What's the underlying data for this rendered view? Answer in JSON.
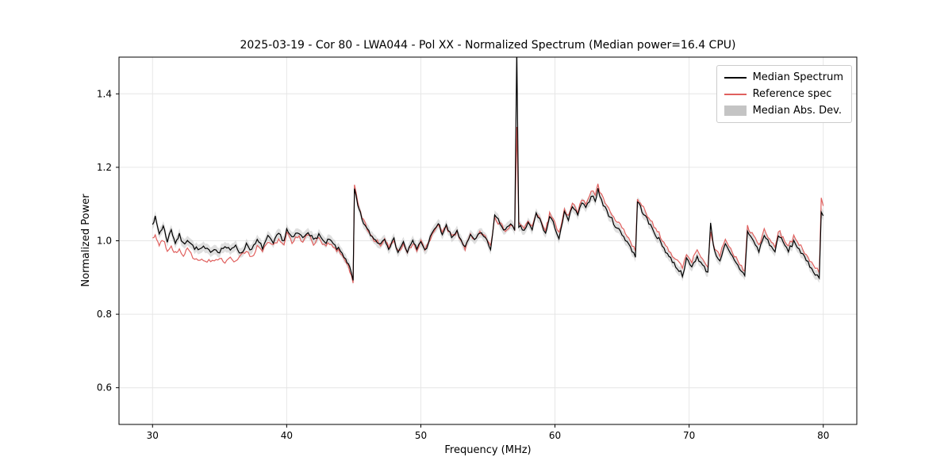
{
  "chart_data": {
    "type": "line",
    "title": "2025-03-19 - Cor 80 - LWA044 - Pol XX - Normalized Spectrum (Median power=16.4 CPU)",
    "xlabel": "Frequency (MHz)",
    "ylabel": "Normalized Power",
    "xlim": [
      27.5,
      82.5
    ],
    "ylim": [
      0.5,
      1.5
    ],
    "xticks": [
      30,
      40,
      50,
      60,
      70,
      80
    ],
    "yticks": [
      0.6,
      0.8,
      1.0,
      1.2,
      1.4
    ],
    "grid": true,
    "layout": {
      "background": "#ffffff",
      "grid_color": "#e6e6e6",
      "axis_color": "#000000",
      "median_color": "#000000",
      "reference_color": "#e0605e",
      "band_color": "#b8b8b8",
      "band_opacity": 0.45,
      "line_width": 1.2
    },
    "legend": {
      "position": "upper right",
      "entries": [
        {
          "label": "Median Spectrum",
          "color": "#000000",
          "type": "line"
        },
        {
          "label": "Reference spec",
          "color": "#e0605e",
          "type": "line"
        },
        {
          "label": "Median Abs. Dev.",
          "color": "#c4c4c4",
          "type": "band"
        }
      ]
    },
    "mad_halfwidth": 0.013,
    "noise": {
      "seed": 7,
      "amplitude": 0.006,
      "step_mhz": 0.12
    },
    "columns": [
      "freq_mhz",
      "median",
      "reference"
    ],
    "points": [
      [
        30.0,
        1.05,
        1.005
      ],
      [
        30.2,
        1.062,
        1.015
      ],
      [
        30.5,
        1.02,
        0.99
      ],
      [
        30.8,
        1.04,
        1.0
      ],
      [
        31.1,
        1.0,
        0.975
      ],
      [
        31.4,
        1.03,
        0.985
      ],
      [
        31.7,
        0.995,
        0.965
      ],
      [
        32.0,
        1.015,
        0.98
      ],
      [
        32.3,
        0.99,
        0.96
      ],
      [
        32.6,
        1.005,
        0.975
      ],
      [
        33.0,
        0.985,
        0.955
      ],
      [
        33.4,
        0.975,
        0.95
      ],
      [
        33.8,
        0.98,
        0.95
      ],
      [
        34.2,
        0.972,
        0.945
      ],
      [
        34.6,
        0.978,
        0.942
      ],
      [
        35.0,
        0.972,
        0.95
      ],
      [
        35.4,
        0.985,
        0.945
      ],
      [
        35.8,
        0.972,
        0.955
      ],
      [
        36.2,
        0.99,
        0.945
      ],
      [
        36.6,
        0.962,
        0.958
      ],
      [
        37.0,
        0.992,
        0.97
      ],
      [
        37.4,
        0.975,
        0.955
      ],
      [
        37.8,
        1.0,
        0.985
      ],
      [
        38.2,
        0.982,
        0.97
      ],
      [
        38.6,
        1.01,
        0.995
      ],
      [
        39.0,
        0.992,
        0.985
      ],
      [
        39.4,
        1.02,
        1.005
      ],
      [
        39.8,
        1.0,
        0.992
      ],
      [
        40.0,
        1.03,
        1.02
      ],
      [
        40.4,
        1.005,
        0.995
      ],
      [
        40.8,
        1.022,
        1.012
      ],
      [
        41.2,
        1.008,
        1.0
      ],
      [
        41.6,
        1.028,
        1.018
      ],
      [
        42.0,
        1.0,
        0.992
      ],
      [
        42.4,
        1.018,
        1.008
      ],
      [
        42.8,
        0.992,
        0.985
      ],
      [
        43.2,
        1.002,
        0.995
      ],
      [
        43.6,
        0.985,
        0.98
      ],
      [
        44.0,
        0.972,
        0.968
      ],
      [
        44.4,
        0.952,
        0.948
      ],
      [
        44.7,
        0.925,
        0.92
      ],
      [
        44.95,
        0.892,
        0.885
      ],
      [
        45.05,
        1.14,
        1.158
      ],
      [
        45.3,
        1.095,
        1.105
      ],
      [
        45.6,
        1.06,
        1.065
      ],
      [
        46.0,
        1.03,
        1.032
      ],
      [
        46.5,
        1.005,
        1.005
      ],
      [
        47.0,
        0.992,
        0.99
      ],
      [
        47.3,
        1.008,
        1.005
      ],
      [
        47.6,
        0.982,
        0.98
      ],
      [
        48.0,
        1.002,
        1.0
      ],
      [
        48.3,
        0.972,
        0.97
      ],
      [
        48.7,
        0.995,
        0.992
      ],
      [
        49.0,
        0.97,
        0.968
      ],
      [
        49.4,
        0.998,
        0.995
      ],
      [
        49.7,
        0.978,
        0.976
      ],
      [
        50.0,
        1.0,
        0.998
      ],
      [
        50.3,
        0.972,
        0.972
      ],
      [
        50.7,
        1.008,
        1.005
      ],
      [
        51.0,
        1.028,
        1.025
      ],
      [
        51.3,
        1.048,
        1.045
      ],
      [
        51.6,
        1.018,
        1.02
      ],
      [
        51.9,
        1.04,
        1.038
      ],
      [
        52.3,
        1.008,
        1.01
      ],
      [
        52.7,
        1.028,
        1.026
      ],
      [
        53.0,
        0.998,
        1.0
      ],
      [
        53.3,
        0.978,
        0.98
      ],
      [
        53.7,
        1.018,
        1.015
      ],
      [
        54.0,
        0.998,
        1.0
      ],
      [
        54.4,
        1.025,
        1.022
      ],
      [
        54.8,
        1.008,
        1.01
      ],
      [
        55.2,
        0.978,
        0.982
      ],
      [
        55.5,
        1.068,
        1.06
      ],
      [
        55.9,
        1.048,
        1.045
      ],
      [
        56.3,
        1.028,
        1.03
      ],
      [
        56.7,
        1.042,
        1.04
      ],
      [
        57.0,
        1.028,
        1.03
      ],
      [
        57.15,
        1.52,
        1.31
      ],
      [
        57.3,
        1.04,
        1.045
      ],
      [
        57.7,
        1.028,
        1.032
      ],
      [
        58.0,
        1.048,
        1.052
      ],
      [
        58.3,
        1.028,
        1.035
      ],
      [
        58.6,
        1.075,
        1.08
      ],
      [
        59.0,
        1.048,
        1.055
      ],
      [
        59.3,
        1.018,
        1.028
      ],
      [
        59.6,
        1.065,
        1.072
      ],
      [
        60.0,
        1.038,
        1.048
      ],
      [
        60.3,
        1.008,
        1.02
      ],
      [
        60.7,
        1.075,
        1.085
      ],
      [
        61.0,
        1.055,
        1.065
      ],
      [
        61.3,
        1.095,
        1.105
      ],
      [
        61.7,
        1.068,
        1.08
      ],
      [
        62.0,
        1.105,
        1.115
      ],
      [
        62.3,
        1.085,
        1.098
      ],
      [
        62.7,
        1.125,
        1.138
      ],
      [
        63.0,
        1.112,
        1.125
      ],
      [
        63.2,
        1.138,
        1.15
      ],
      [
        63.6,
        1.098,
        1.112
      ],
      [
        64.0,
        1.072,
        1.085
      ],
      [
        64.5,
        1.042,
        1.058
      ],
      [
        65.0,
        1.018,
        1.035
      ],
      [
        65.5,
        0.992,
        1.008
      ],
      [
        66.0,
        0.955,
        0.972
      ],
      [
        66.15,
        1.108,
        1.118
      ],
      [
        66.6,
        1.075,
        1.088
      ],
      [
        67.0,
        1.048,
        1.062
      ],
      [
        67.5,
        1.018,
        1.035
      ],
      [
        68.0,
        0.988,
        1.005
      ],
      [
        68.5,
        0.958,
        0.975
      ],
      [
        69.0,
        0.932,
        0.95
      ],
      [
        69.5,
        0.908,
        0.925
      ],
      [
        69.8,
        0.948,
        0.962
      ],
      [
        70.2,
        0.928,
        0.945
      ],
      [
        70.6,
        0.958,
        0.972
      ],
      [
        71.0,
        0.932,
        0.948
      ],
      [
        71.4,
        0.915,
        0.932
      ],
      [
        71.6,
        1.048,
        1.02
      ],
      [
        71.9,
        0.968,
        0.982
      ],
      [
        72.3,
        0.948,
        0.962
      ],
      [
        72.7,
        0.988,
        1.0
      ],
      [
        73.1,
        0.962,
        0.978
      ],
      [
        73.5,
        0.938,
        0.952
      ],
      [
        73.9,
        0.918,
        0.932
      ],
      [
        74.15,
        0.905,
        0.918
      ],
      [
        74.35,
        1.028,
        1.04
      ],
      [
        74.8,
        0.998,
        1.012
      ],
      [
        75.2,
        0.972,
        0.988
      ],
      [
        75.6,
        1.015,
        1.028
      ],
      [
        76.0,
        0.992,
        1.005
      ],
      [
        76.4,
        0.968,
        0.982
      ],
      [
        76.65,
        1.018,
        1.03
      ],
      [
        77.0,
        0.995,
        1.008
      ],
      [
        77.4,
        0.972,
        0.985
      ],
      [
        77.8,
        0.998,
        1.01
      ],
      [
        78.2,
        0.978,
        0.992
      ],
      [
        78.6,
        0.952,
        0.968
      ],
      [
        79.0,
        0.932,
        0.948
      ],
      [
        79.4,
        0.912,
        0.928
      ],
      [
        79.7,
        0.898,
        0.912
      ],
      [
        79.85,
        1.075,
        1.118
      ],
      [
        80.0,
        1.068,
        1.095
      ]
    ]
  }
}
